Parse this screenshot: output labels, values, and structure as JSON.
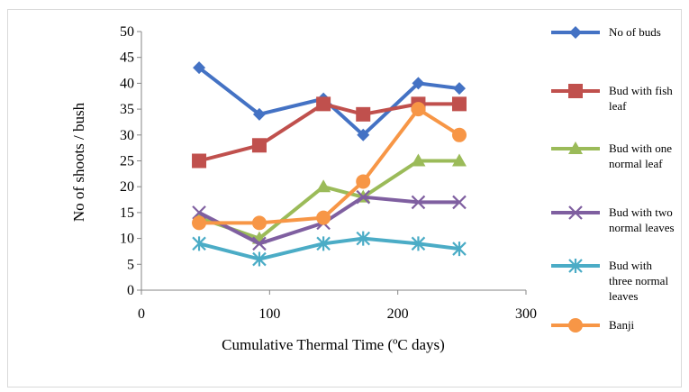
{
  "chart_data": {
    "type": "line",
    "xlabel": "Cumulative Thermal Time (ºC days)",
    "ylabel": "No of shoots / bush",
    "xlim": [
      0,
      300
    ],
    "ylim": [
      0,
      50
    ],
    "xticks": [
      0,
      100,
      200,
      300
    ],
    "yticks": [
      0,
      5,
      10,
      15,
      20,
      25,
      30,
      35,
      40,
      45,
      50
    ],
    "grid": false,
    "legend_position": "right",
    "x": [
      45,
      92,
      142,
      173,
      216,
      248
    ],
    "series": [
      {
        "name": "No of buds",
        "legend_lines": [
          "No of buds"
        ],
        "color": "#4472C4",
        "marker": "diamond",
        "values": [
          43,
          34,
          37,
          30,
          40,
          39
        ]
      },
      {
        "name": "Bud with fish leaf",
        "legend_lines": [
          "Bud with fish",
          "leaf"
        ],
        "color": "#C0504D",
        "marker": "square",
        "values": [
          25,
          28,
          36,
          34,
          36,
          36
        ]
      },
      {
        "name": "Bud with one normal leaf",
        "legend_lines": [
          "Bud with one",
          "normal leaf"
        ],
        "color": "#9BBB59",
        "marker": "triangle",
        "values": [
          14,
          10,
          20,
          18,
          25,
          25
        ]
      },
      {
        "name": "Bud with two normal leaves",
        "legend_lines": [
          "Bud with two",
          "normal leaves"
        ],
        "color": "#7F5FA0",
        "marker": "x",
        "values": [
          15,
          9,
          13,
          18,
          17,
          17
        ]
      },
      {
        "name": "Bud with three normal leaves",
        "legend_lines": [
          "Bud with",
          "three normal",
          "leaves"
        ],
        "color": "#4BACC6",
        "marker": "asterisk",
        "values": [
          9,
          6,
          9,
          10,
          9,
          8
        ]
      },
      {
        "name": "Banji",
        "legend_lines": [
          "Banji"
        ],
        "color": "#F79646",
        "marker": "circle",
        "values": [
          13,
          13,
          14,
          21,
          35,
          30
        ]
      }
    ]
  }
}
